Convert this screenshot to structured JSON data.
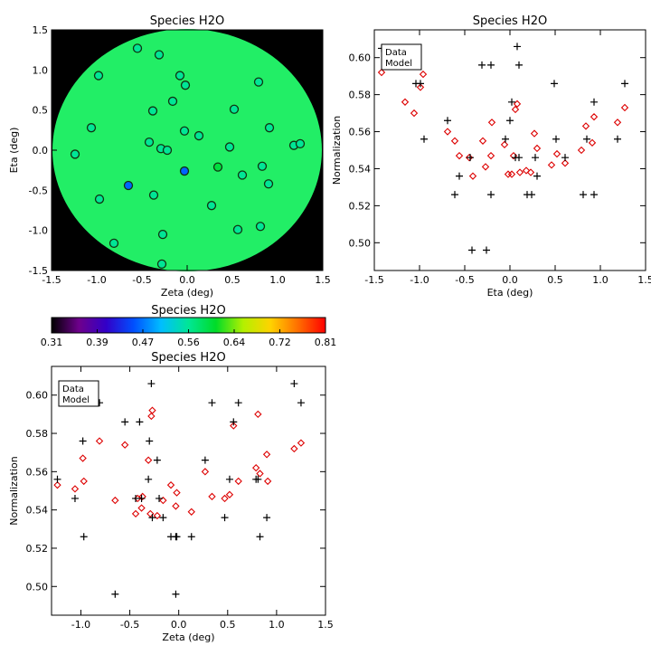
{
  "charts": [
    {
      "type": "scatter",
      "title": "Species H2O",
      "xlabel": "Zeta (deg)",
      "ylabel": "Eta (deg)",
      "xlim": [
        -1.5,
        1.5
      ],
      "ylim": [
        -1.5,
        1.5
      ],
      "xticks": [
        -1.5,
        -1.0,
        -0.5,
        0.0,
        0.5,
        1.0,
        1.5
      ],
      "yticks": [
        -1.5,
        -1.0,
        -0.5,
        0.0,
        0.5,
        1.0,
        1.5
      ],
      "background": "#000000",
      "disk_color": "#22ee66",
      "circle_stroke": "#113311",
      "points": [
        {
          "x": -0.98,
          "y": 0.93,
          "v": 0.56
        },
        {
          "x": -0.55,
          "y": 1.27,
          "v": 0.56
        },
        {
          "x": -0.31,
          "y": 1.19,
          "v": 0.56
        },
        {
          "x": -0.08,
          "y": 0.93,
          "v": 0.56
        },
        {
          "x": -0.02,
          "y": 0.81,
          "v": 0.56
        },
        {
          "x": 0.79,
          "y": 0.85,
          "v": 0.56
        },
        {
          "x": -1.06,
          "y": 0.28,
          "v": 0.56
        },
        {
          "x": -0.38,
          "y": 0.49,
          "v": 0.56
        },
        {
          "x": -0.16,
          "y": 0.61,
          "v": 0.56
        },
        {
          "x": 0.52,
          "y": 0.51,
          "v": 0.56
        },
        {
          "x": 0.91,
          "y": 0.28,
          "v": 0.56
        },
        {
          "x": -0.42,
          "y": 0.1,
          "v": 0.56
        },
        {
          "x": -0.29,
          "y": 0.02,
          "v": 0.56
        },
        {
          "x": -0.22,
          "y": 0.0,
          "v": 0.56
        },
        {
          "x": -0.03,
          "y": 0.24,
          "v": 0.56
        },
        {
          "x": 0.13,
          "y": 0.18,
          "v": 0.56
        },
        {
          "x": 0.47,
          "y": 0.04,
          "v": 0.56
        },
        {
          "x": 1.18,
          "y": 0.06,
          "v": 0.56
        },
        {
          "x": 1.25,
          "y": 0.08,
          "v": 0.56
        },
        {
          "x": -1.24,
          "y": -0.05,
          "v": 0.56
        },
        {
          "x": -0.03,
          "y": -0.26,
          "v": 0.47
        },
        {
          "x": 0.34,
          "y": -0.21,
          "v": 0.6
        },
        {
          "x": -0.65,
          "y": -0.44,
          "v": 0.47
        },
        {
          "x": 0.61,
          "y": -0.31,
          "v": 0.56
        },
        {
          "x": 0.83,
          "y": -0.2,
          "v": 0.56
        },
        {
          "x": 0.9,
          "y": -0.42,
          "v": 0.56
        },
        {
          "x": -0.97,
          "y": -0.61,
          "v": 0.56
        },
        {
          "x": -0.37,
          "y": -0.56,
          "v": 0.56
        },
        {
          "x": 0.27,
          "y": -0.69,
          "v": 0.56
        },
        {
          "x": -0.27,
          "y": -1.05,
          "v": 0.56
        },
        {
          "x": 0.56,
          "y": -0.99,
          "v": 0.56
        },
        {
          "x": 0.81,
          "y": -0.95,
          "v": 0.56
        },
        {
          "x": -0.81,
          "y": -1.16,
          "v": 0.56
        },
        {
          "x": -0.28,
          "y": -1.42,
          "v": 0.56
        }
      ]
    },
    {
      "type": "scatter",
      "title": "Species H2O",
      "xlabel": "Eta (deg)",
      "ylabel": "Normalization",
      "xlim": [
        -1.5,
        1.5
      ],
      "ylim": [
        0.485,
        0.615
      ],
      "xticks": [
        -1.5,
        -1.0,
        -0.5,
        0.0,
        0.5,
        1.0,
        1.5
      ],
      "yticks": [
        0.5,
        0.52,
        0.54,
        0.56,
        0.58,
        0.6
      ],
      "legend": {
        "position": "top-left",
        "data_label": "Data",
        "model_label": "Model"
      },
      "data_color": "#000000",
      "model_color": "#dd0000",
      "data_points": [
        [
          -1.42,
          0.605
        ],
        [
          -1.16,
          0.596
        ],
        [
          -1.04,
          0.586
        ],
        [
          -0.99,
          0.586
        ],
        [
          -0.95,
          0.556
        ],
        [
          -0.69,
          0.566
        ],
        [
          -0.61,
          0.526
        ],
        [
          -0.56,
          0.536
        ],
        [
          -0.44,
          0.546
        ],
        [
          -0.42,
          0.496
        ],
        [
          -0.31,
          0.596
        ],
        [
          -0.26,
          0.496
        ],
        [
          -0.21,
          0.596
        ],
        [
          -0.21,
          0.526
        ],
        [
          -0.05,
          0.556
        ],
        [
          0.0,
          0.566
        ],
        [
          0.02,
          0.576
        ],
        [
          0.06,
          0.546
        ],
        [
          0.08,
          0.606
        ],
        [
          0.1,
          0.596
        ],
        [
          0.1,
          0.546
        ],
        [
          0.19,
          0.526
        ],
        [
          0.24,
          0.526
        ],
        [
          0.28,
          0.546
        ],
        [
          0.3,
          0.536
        ],
        [
          0.49,
          0.586
        ],
        [
          0.51,
          0.556
        ],
        [
          0.61,
          0.546
        ],
        [
          0.81,
          0.526
        ],
        [
          0.85,
          0.556
        ],
        [
          0.93,
          0.576
        ],
        [
          0.93,
          0.526
        ],
        [
          1.19,
          0.556
        ],
        [
          1.27,
          0.586
        ]
      ],
      "model_points": [
        [
          -1.42,
          0.592
        ],
        [
          -1.16,
          0.576
        ],
        [
          -1.06,
          0.57
        ],
        [
          -0.99,
          0.584
        ],
        [
          -0.96,
          0.591
        ],
        [
          -0.69,
          0.56
        ],
        [
          -0.61,
          0.555
        ],
        [
          -0.56,
          0.547
        ],
        [
          -0.45,
          0.546
        ],
        [
          -0.41,
          0.536
        ],
        [
          -0.3,
          0.555
        ],
        [
          -0.27,
          0.541
        ],
        [
          -0.21,
          0.547
        ],
        [
          -0.2,
          0.565
        ],
        [
          -0.06,
          0.553
        ],
        [
          -0.02,
          0.537
        ],
        [
          0.02,
          0.537
        ],
        [
          0.04,
          0.547
        ],
        [
          0.06,
          0.572
        ],
        [
          0.08,
          0.575
        ],
        [
          0.11,
          0.538
        ],
        [
          0.18,
          0.539
        ],
        [
          0.23,
          0.538
        ],
        [
          0.27,
          0.559
        ],
        [
          0.3,
          0.551
        ],
        [
          0.46,
          0.542
        ],
        [
          0.52,
          0.548
        ],
        [
          0.61,
          0.543
        ],
        [
          0.79,
          0.55
        ],
        [
          0.84,
          0.563
        ],
        [
          0.91,
          0.554
        ],
        [
          0.93,
          0.568
        ],
        [
          1.19,
          0.565
        ],
        [
          1.27,
          0.573
        ]
      ]
    },
    {
      "type": "scatter",
      "title": "Species H2O",
      "xlabel": "Zeta (deg)",
      "ylabel": "Normalization",
      "xlim": [
        -1.3,
        1.5
      ],
      "ylim": [
        0.485,
        0.615
      ],
      "xticks": [
        -1.0,
        -0.5,
        0.0,
        0.5,
        1.0,
        1.5
      ],
      "yticks": [
        0.5,
        0.52,
        0.54,
        0.56,
        0.58,
        0.6
      ],
      "legend": {
        "position": "top-left",
        "data_label": "Data",
        "model_label": "Model"
      },
      "data_color": "#000000",
      "model_color": "#dd0000",
      "data_points": [
        [
          -1.24,
          0.556
        ],
        [
          -1.06,
          0.546
        ],
        [
          -0.98,
          0.576
        ],
        [
          -0.97,
          0.526
        ],
        [
          -0.81,
          0.596
        ],
        [
          -0.65,
          0.496
        ],
        [
          -0.55,
          0.586
        ],
        [
          -0.44,
          0.546
        ],
        [
          -0.4,
          0.586
        ],
        [
          -0.38,
          0.546
        ],
        [
          -0.31,
          0.556
        ],
        [
          -0.3,
          0.576
        ],
        [
          -0.28,
          0.606
        ],
        [
          -0.27,
          0.536
        ],
        [
          -0.22,
          0.566
        ],
        [
          -0.2,
          0.546
        ],
        [
          -0.16,
          0.536
        ],
        [
          -0.08,
          0.526
        ],
        [
          -0.03,
          0.526
        ],
        [
          -0.03,
          0.496
        ],
        [
          -0.02,
          0.526
        ],
        [
          0.13,
          0.526
        ],
        [
          0.27,
          0.566
        ],
        [
          0.34,
          0.596
        ],
        [
          0.47,
          0.536
        ],
        [
          0.52,
          0.556
        ],
        [
          0.56,
          0.586
        ],
        [
          0.61,
          0.596
        ],
        [
          0.79,
          0.556
        ],
        [
          0.81,
          0.556
        ],
        [
          0.83,
          0.526
        ],
        [
          0.9,
          0.536
        ],
        [
          1.18,
          0.606
        ],
        [
          1.25,
          0.596
        ]
      ],
      "model_points": [
        [
          -1.24,
          0.553
        ],
        [
          -1.06,
          0.551
        ],
        [
          -0.98,
          0.567
        ],
        [
          -0.97,
          0.555
        ],
        [
          -0.81,
          0.576
        ],
        [
          -0.65,
          0.545
        ],
        [
          -0.55,
          0.574
        ],
        [
          -0.44,
          0.538
        ],
        [
          -0.42,
          0.546
        ],
        [
          -0.38,
          0.541
        ],
        [
          -0.37,
          0.547
        ],
        [
          -0.31,
          0.566
        ],
        [
          -0.29,
          0.538
        ],
        [
          -0.28,
          0.589
        ],
        [
          -0.27,
          0.592
        ],
        [
          -0.22,
          0.537
        ],
        [
          -0.16,
          0.545
        ],
        [
          -0.08,
          0.553
        ],
        [
          -0.03,
          0.542
        ],
        [
          -0.02,
          0.549
        ],
        [
          0.13,
          0.539
        ],
        [
          0.27,
          0.56
        ],
        [
          0.34,
          0.547
        ],
        [
          0.47,
          0.546
        ],
        [
          0.52,
          0.548
        ],
        [
          0.56,
          0.584
        ],
        [
          0.61,
          0.555
        ],
        [
          0.79,
          0.562
        ],
        [
          0.81,
          0.59
        ],
        [
          0.83,
          0.559
        ],
        [
          0.9,
          0.569
        ],
        [
          0.91,
          0.555
        ],
        [
          1.18,
          0.572
        ],
        [
          1.25,
          0.575
        ]
      ]
    }
  ],
  "colorbar": {
    "title": "Species H2O",
    "min": 0.31,
    "max": 0.81,
    "tick_labels": [
      "0.31",
      "0.39",
      "0.47",
      "0.56",
      "0.64",
      "0.72",
      "0.81"
    ],
    "colormap": "rainbow"
  }
}
